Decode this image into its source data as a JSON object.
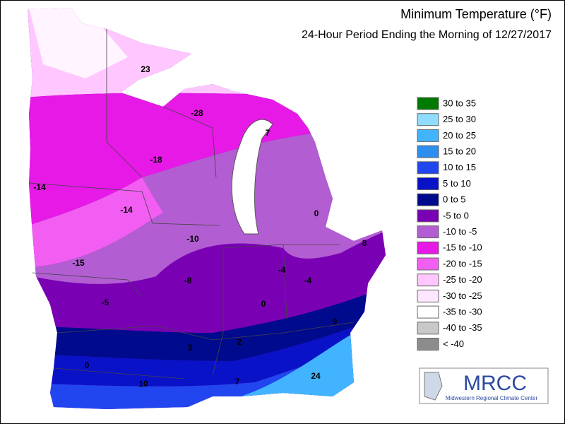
{
  "header": {
    "title": "Minimum Temperature (°F)",
    "subtitle": "24-Hour Period Ending the Morning of 12/27/2017"
  },
  "legend": [
    {
      "label": "30 to 35",
      "color": "#007a00"
    },
    {
      "label": "25 to 30",
      "color": "#8fdcff"
    },
    {
      "label": "20 to 25",
      "color": "#42b4ff"
    },
    {
      "label": "15 to 20",
      "color": "#2d8ef0"
    },
    {
      "label": "10 to 15",
      "color": "#2146f0"
    },
    {
      "label": "5 to 10",
      "color": "#0a12c8"
    },
    {
      "label": "0 to 5",
      "color": "#000a8c"
    },
    {
      "label": "-5 to 0",
      "color": "#7a00b4"
    },
    {
      "label": "-10 to -5",
      "color": "#b25ed2"
    },
    {
      "label": "-15 to -10",
      "color": "#e619e6"
    },
    {
      "label": "-20 to -15",
      "color": "#f25ef2"
    },
    {
      "label": "-25 to -20",
      "color": "#ffc6ff"
    },
    {
      "label": "-30 to -25",
      "color": "#ffe6ff"
    },
    {
      "label": "-35 to -30",
      "color": "#ffffff"
    },
    {
      "label": "-40 to -35",
      "color": "#c8c8c8"
    },
    {
      "label": "< -40",
      "color": "#8c8c8c"
    }
  ],
  "station_labels": [
    "23",
    "-28",
    "7",
    "-18",
    "-14",
    "-14",
    "0",
    "-10",
    "8",
    "-15",
    "-4",
    "-4",
    "-8",
    "-5",
    "0",
    "9",
    "3",
    "2",
    "0",
    "24",
    "10",
    "7"
  ],
  "logo": {
    "name": "MRCC",
    "full_name": "Midwestern Regional Climate Center"
  }
}
